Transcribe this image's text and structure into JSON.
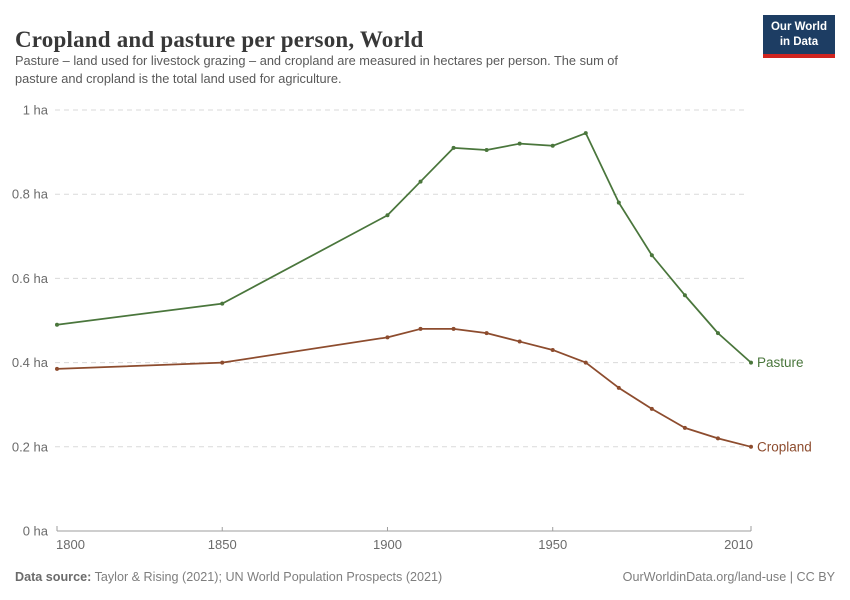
{
  "header": {
    "title": "Cropland and pasture per person, World",
    "subtitle_lines": [
      "Pasture – land used for livestock grazing – and cropland are measured in hectares per person. The sum of",
      "pasture and cropland is the total land used for agriculture."
    ]
  },
  "logo": {
    "line1": "Our World",
    "line2": "in Data",
    "bg_color": "#1d3d63",
    "stripe_color": "#d0241f"
  },
  "chart_data": {
    "type": "line",
    "unit": "hectares per person",
    "x": [
      1800,
      1850,
      1900,
      1910,
      1920,
      1930,
      1940,
      1950,
      1960,
      1970,
      1980,
      1990,
      2000,
      2010
    ],
    "series": [
      {
        "name": "Pasture",
        "color": "#4a763c",
        "values": [
          0.49,
          0.54,
          0.75,
          0.83,
          0.91,
          0.905,
          0.92,
          0.915,
          0.945,
          0.78,
          0.655,
          0.56,
          0.47,
          0.4
        ]
      },
      {
        "name": "Cropland",
        "color": "#8d4c2e",
        "values": [
          0.385,
          0.4,
          0.46,
          0.48,
          0.48,
          0.47,
          0.45,
          0.43,
          0.4,
          0.34,
          0.29,
          0.245,
          0.22,
          0.2
        ]
      }
    ],
    "x_ticks": [
      {
        "value": 1800,
        "label": "1800"
      },
      {
        "value": 1850,
        "label": "1850"
      },
      {
        "value": 1900,
        "label": "1900"
      },
      {
        "value": 1950,
        "label": "1950"
      },
      {
        "value": 2010,
        "label": "2010"
      }
    ],
    "y_ticks": [
      {
        "value": 0,
        "label": "0 ha"
      },
      {
        "value": 0.2,
        "label": "0.2 ha"
      },
      {
        "value": 0.4,
        "label": "0.4 ha"
      },
      {
        "value": 0.6,
        "label": "0.6 ha"
      },
      {
        "value": 0.8,
        "label": "0.8 ha"
      },
      {
        "value": 1,
        "label": "1 ha"
      }
    ],
    "xlim": [
      1800,
      2010
    ],
    "ylim": [
      0,
      1
    ],
    "grid": "horizontal-dashed",
    "legend": "end-of-line-labels",
    "grid_color": "#dadada",
    "axis_color": "#9e9e9e"
  },
  "footer": {
    "source_label": "Data source:",
    "source_text": " Taylor & Rising (2021); UN World Population Prospects (2021)",
    "credit": "OurWorldinData.org/land-use | CC BY"
  }
}
